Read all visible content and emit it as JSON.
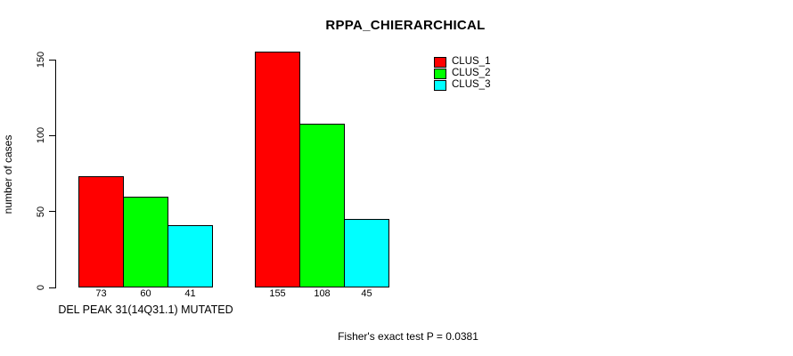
{
  "chart_data": {
    "type": "bar",
    "title": "RPPA_CHIERARCHICAL",
    "ylabel": "number of cases",
    "xlabel": "",
    "ylim": [
      0,
      150
    ],
    "yticks": [
      0,
      50,
      100,
      150
    ],
    "grid": false,
    "legend_position": "top-right",
    "categories": [
      "DEL PEAK 31(14Q31.1) MUTATED",
      ""
    ],
    "series": [
      {
        "name": "CLUS_1",
        "color": "#ff0000",
        "values": [
          73,
          155
        ]
      },
      {
        "name": "CLUS_2",
        "color": "#00ff00",
        "values": [
          60,
          108
        ]
      },
      {
        "name": "CLUS_3",
        "color": "#00ffff",
        "values": [
          41,
          45
        ]
      }
    ],
    "bar_value_labels": [
      [
        73,
        60,
        41
      ],
      [
        155,
        108,
        45
      ]
    ],
    "footnote": "Fisher's exact test P = 0.0381",
    "colors": {
      "background": "#ffffff",
      "axis": "#000000",
      "text": "#000000"
    }
  }
}
